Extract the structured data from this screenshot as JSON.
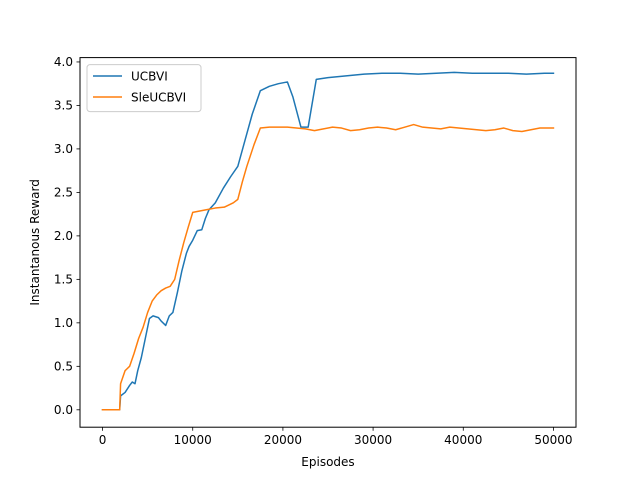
{
  "chart_data": {
    "type": "line",
    "title": "",
    "xlabel": "Episodes",
    "ylabel": "Instantanous Reward",
    "xlim": [
      -2500,
      52500
    ],
    "ylim": [
      -0.2,
      4.05
    ],
    "xticks": [
      0,
      10000,
      20000,
      30000,
      40000,
      50000
    ],
    "xtick_labels": [
      "0",
      "10000",
      "20000",
      "30000",
      "40000",
      "50000"
    ],
    "yticks": [
      0.0,
      0.5,
      1.0,
      1.5,
      2.0,
      2.5,
      3.0,
      3.5,
      4.0
    ],
    "ytick_labels": [
      "0.0",
      "0.5",
      "1.0",
      "1.5",
      "2.0",
      "2.5",
      "3.0",
      "3.5",
      "4.0"
    ],
    "grid": false,
    "legend_position": "top-left",
    "series": [
      {
        "name": "UCBVI",
        "color": "#1f77b4",
        "x": [
          0,
          1900,
          2000,
          2500,
          3000,
          3300,
          3600,
          3900,
          4300,
          4700,
          5200,
          5600,
          5900,
          6200,
          6500,
          7000,
          7400,
          7800,
          8300,
          8800,
          9300,
          9600,
          10000,
          10500,
          11000,
          11400,
          11800,
          12500,
          13400,
          14200,
          15000,
          15800,
          16600,
          17500,
          18500,
          19500,
          20500,
          21100,
          22000,
          22800,
          23700,
          25000,
          27000,
          29000,
          31000,
          33000,
          35000,
          37000,
          39000,
          41000,
          43000,
          45000,
          47000,
          49000,
          50000
        ],
        "y": [
          0.0,
          0.0,
          0.16,
          0.2,
          0.28,
          0.32,
          0.3,
          0.45,
          0.6,
          0.8,
          1.05,
          1.08,
          1.07,
          1.06,
          1.02,
          0.97,
          1.08,
          1.12,
          1.35,
          1.6,
          1.8,
          1.88,
          1.95,
          2.06,
          2.07,
          2.2,
          2.3,
          2.38,
          2.55,
          2.68,
          2.8,
          3.1,
          3.4,
          3.67,
          3.72,
          3.75,
          3.77,
          3.6,
          3.25,
          3.25,
          3.8,
          3.82,
          3.84,
          3.86,
          3.87,
          3.87,
          3.86,
          3.87,
          3.88,
          3.87,
          3.87,
          3.87,
          3.86,
          3.87,
          3.87
        ]
      },
      {
        "name": "SleUCBVI",
        "color": "#ff7f0e",
        "x": [
          0,
          1900,
          2000,
          2500,
          3000,
          3500,
          4000,
          4500,
          5000,
          5500,
          6000,
          6500,
          7000,
          7500,
          8000,
          8500,
          9000,
          9500,
          10000,
          10500,
          11500,
          12500,
          13500,
          14500,
          15000,
          15500,
          16000,
          16800,
          17500,
          18500,
          19500,
          20500,
          21500,
          22500,
          23500,
          24500,
          25500,
          26500,
          27500,
          28500,
          29500,
          30500,
          31500,
          32500,
          33500,
          34500,
          35500,
          36500,
          37500,
          38500,
          39500,
          40500,
          41500,
          42500,
          43500,
          44500,
          45500,
          46500,
          47500,
          48500,
          49500,
          50000
        ],
        "y": [
          0.0,
          0.0,
          0.3,
          0.45,
          0.5,
          0.65,
          0.82,
          0.95,
          1.12,
          1.25,
          1.32,
          1.37,
          1.4,
          1.42,
          1.5,
          1.72,
          1.92,
          2.1,
          2.27,
          2.28,
          2.3,
          2.32,
          2.33,
          2.38,
          2.42,
          2.62,
          2.8,
          3.05,
          3.24,
          3.25,
          3.25,
          3.25,
          3.24,
          3.23,
          3.21,
          3.23,
          3.25,
          3.24,
          3.21,
          3.22,
          3.24,
          3.25,
          3.24,
          3.22,
          3.25,
          3.28,
          3.25,
          3.24,
          3.23,
          3.25,
          3.24,
          3.23,
          3.22,
          3.21,
          3.22,
          3.24,
          3.21,
          3.2,
          3.22,
          3.24,
          3.24,
          3.24
        ]
      }
    ]
  }
}
